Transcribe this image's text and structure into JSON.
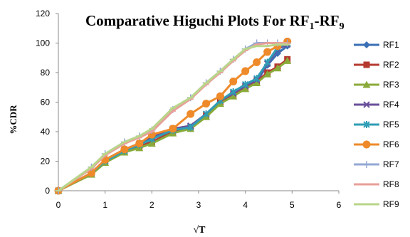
{
  "chart_data": {
    "type": "line",
    "title_main": "Comparative Higuchi Plots For RF",
    "title_sub1": "1",
    "title_dash": "-RF",
    "title_sub2": "9",
    "xlabel": "√T",
    "ylabel": "%CDR",
    "xlim": [
      0,
      6
    ],
    "ylim": [
      0,
      120
    ],
    "xticks": [
      0,
      1,
      2,
      3,
      4,
      5,
      6
    ],
    "yticks": [
      0,
      20,
      40,
      60,
      80,
      100,
      120
    ],
    "grid": false,
    "legend_position": "right",
    "x": [
      0,
      0.707,
      1,
      1.414,
      1.732,
      2,
      2.449,
      2.828,
      3.162,
      3.464,
      3.742,
      4,
      4.243,
      4.472,
      4.69,
      4.899
    ],
    "series": [
      {
        "name": "RF1",
        "color": "#3a6fb5",
        "marker": "diamond",
        "values": [
          0,
          12,
          20,
          27,
          30,
          33,
          40,
          42,
          51,
          60,
          65,
          70,
          74,
          85,
          93,
          98
        ]
      },
      {
        "name": "RF2",
        "color": "#b5392f",
        "marker": "square",
        "values": [
          0,
          12,
          20,
          27,
          30,
          33,
          40,
          43,
          51,
          60,
          65,
          70,
          74,
          80,
          84,
          89
        ]
      },
      {
        "name": "RF3",
        "color": "#8aab3a",
        "marker": "triangle",
        "values": [
          0,
          11,
          19,
          26,
          29,
          32,
          39,
          42,
          50,
          59,
          64,
          69,
          73,
          79,
          83,
          88
        ]
      },
      {
        "name": "RF4",
        "color": "#6a4f9a",
        "marker": "x",
        "values": [
          0,
          12,
          21,
          28,
          32,
          36,
          42,
          44,
          52,
          61,
          66,
          71,
          75,
          86,
          96,
          99
        ]
      },
      {
        "name": "RF5",
        "color": "#2f9db5",
        "marker": "star",
        "values": [
          0,
          12,
          20,
          27,
          31,
          35,
          41,
          43,
          52,
          61,
          67,
          72,
          76,
          87,
          97,
          100
        ]
      },
      {
        "name": "RF6",
        "color": "#ee8a2a",
        "marker": "circle",
        "values": [
          0,
          12,
          21,
          28,
          32,
          38,
          42,
          52,
          59,
          64,
          74,
          81,
          87,
          94,
          98,
          101
        ]
      },
      {
        "name": "RF7",
        "color": "#93a8d4",
        "marker": "plus",
        "values": [
          0,
          16,
          25,
          33,
          37,
          41,
          55,
          63,
          73,
          81,
          89,
          96,
          100,
          100,
          100,
          100
        ]
      },
      {
        "name": "RF8",
        "color": "#e8a09a",
        "marker": "dash",
        "values": [
          0,
          15,
          24,
          32,
          36,
          40,
          54,
          62,
          72,
          80,
          88,
          95,
          99,
          100,
          100,
          100
        ]
      },
      {
        "name": "RF9",
        "color": "#b9d68a",
        "marker": "dash",
        "values": [
          0,
          16,
          25,
          33,
          37,
          42,
          56,
          63,
          73,
          81,
          89,
          96,
          98,
          98,
          99,
          99
        ]
      }
    ]
  }
}
